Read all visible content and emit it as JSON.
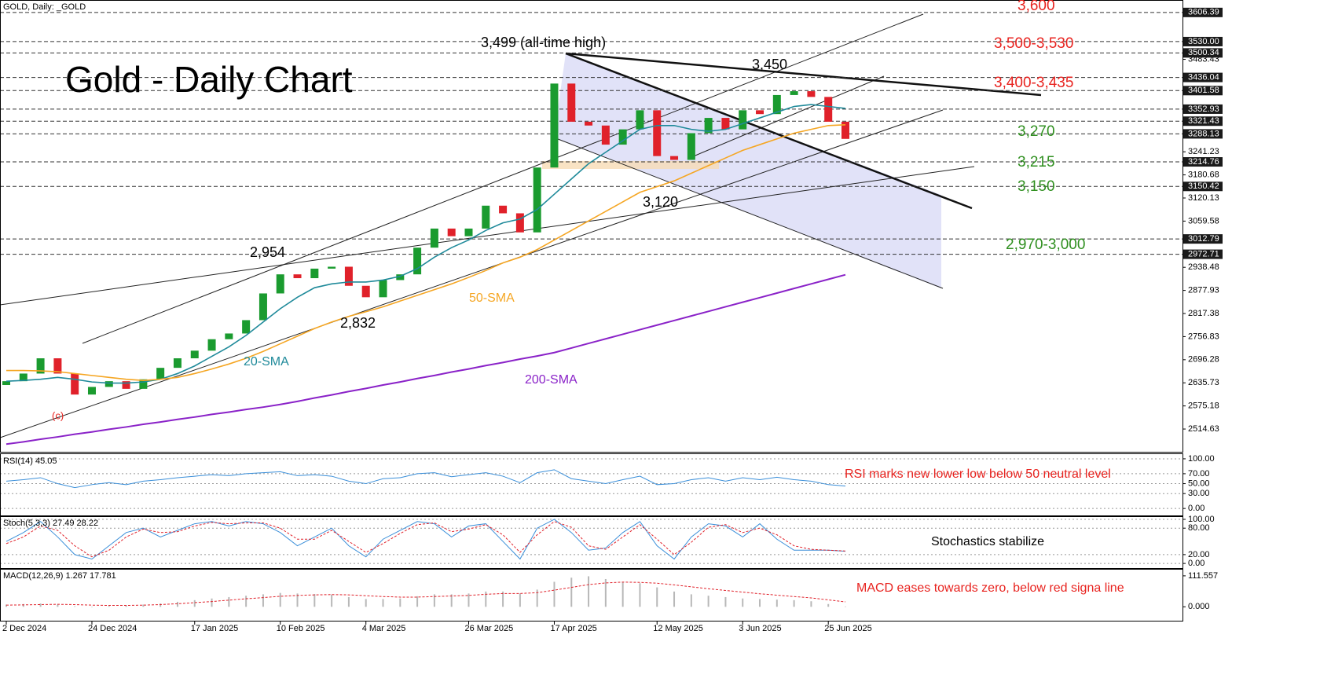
{
  "chart_data": [
    {
      "type": "candlestick",
      "title": "Gold - Daily Chart",
      "header": "GOLD, Daily: _GOLD",
      "categories": [
        "2 Dec 2024",
        null,
        null,
        null,
        null,
        "24 Dec 2024",
        null,
        null,
        null,
        null,
        null,
        "17 Jan 2025",
        null,
        null,
        null,
        null,
        "10 Feb 2025",
        null,
        null,
        null,
        null,
        "4 Mar 2025",
        null,
        null,
        null,
        null,
        null,
        "26 Mar 2025",
        null,
        null,
        null,
        null,
        "17 Apr 2025",
        null,
        null,
        null,
        null,
        null,
        "12 May 2025",
        null,
        null,
        null,
        null,
        "3 Jun 2025",
        null,
        null,
        null,
        null,
        "25 Jun 2025",
        null
      ],
      "open": [
        2630,
        2640,
        2660,
        2700,
        2660,
        2605,
        2625,
        2640,
        2620,
        2645,
        2675,
        2700,
        2720,
        2750,
        2765,
        2800,
        2870,
        2920,
        2910,
        2935,
        2940,
        2890,
        2860,
        2905,
        2920,
        2990,
        3040,
        3020,
        3040,
        3100,
        3080,
        3030,
        3200,
        3420,
        3320,
        3310,
        3260,
        3300,
        3350,
        3230,
        3220,
        3290,
        3330,
        3300,
        3350,
        3340,
        3390,
        3400,
        3385,
        3320
      ],
      "close": [
        2640,
        2660,
        2700,
        2660,
        2605,
        2625,
        2640,
        2620,
        2645,
        2675,
        2700,
        2720,
        2750,
        2765,
        2800,
        2870,
        2920,
        2910,
        2935,
        2940,
        2890,
        2860,
        2905,
        2920,
        2990,
        3040,
        3020,
        3040,
        3100,
        3080,
        3030,
        3200,
        3420,
        3320,
        3310,
        3260,
        3300,
        3350,
        3230,
        3220,
        3290,
        3330,
        3300,
        3350,
        3340,
        3390,
        3400,
        3385,
        3320,
        3275
      ],
      "up_color": "#1a9b2f",
      "down_color": "#e0212a",
      "series": [
        {
          "name": "20-SMA",
          "color": "#1f8a9a",
          "values": [
            2640,
            2642,
            2645,
            2650,
            2645,
            2638,
            2635,
            2635,
            2638,
            2645,
            2660,
            2680,
            2705,
            2730,
            2760,
            2795,
            2830,
            2860,
            2885,
            2895,
            2900,
            2900,
            2905,
            2915,
            2935,
            2965,
            2990,
            3010,
            3035,
            3055,
            3065,
            3090,
            3130,
            3170,
            3210,
            3240,
            3270,
            3300,
            3310,
            3310,
            3300,
            3295,
            3300,
            3315,
            3330,
            3345,
            3360,
            3365,
            3360,
            3355
          ]
        },
        {
          "name": "50-SMA",
          "color": "#f5a623",
          "values": [
            2668,
            2668,
            2667,
            2665,
            2660,
            2655,
            2650,
            2645,
            2642,
            2645,
            2650,
            2660,
            2672,
            2685,
            2700,
            2718,
            2738,
            2758,
            2778,
            2795,
            2810,
            2822,
            2835,
            2850,
            2865,
            2880,
            2895,
            2912,
            2930,
            2950,
            2965,
            2985,
            3010,
            3035,
            3060,
            3085,
            3110,
            3135,
            3150,
            3165,
            3185,
            3205,
            3225,
            3245,
            3260,
            3275,
            3290,
            3300,
            3310,
            3312
          ]
        },
        {
          "name": "200-SMA",
          "color": "#8a22c8",
          "values": [
            2475,
            2481,
            2488,
            2494,
            2501,
            2507,
            2514,
            2520,
            2527,
            2533,
            2540,
            2546,
            2553,
            2559,
            2566,
            2572,
            2579,
            2587,
            2596,
            2604,
            2613,
            2621,
            2630,
            2638,
            2647,
            2655,
            2664,
            2672,
            2681,
            2689,
            2698,
            2706,
            2715,
            2727,
            2739,
            2751,
            2763,
            2775,
            2787,
            2799,
            2811,
            2823,
            2835,
            2847,
            2859,
            2871,
            2883,
            2895,
            2907,
            2919
          ]
        }
      ],
      "ylim": [
        2455,
        3639
      ],
      "yticks": [
        3483.43,
        3241.23,
        3180.68,
        3120.13,
        3059.58,
        2938.48,
        2877.93,
        2817.38,
        2756.83,
        2696.28,
        2635.73,
        2575.18,
        2514.63
      ],
      "levels": [
        3606.39,
        {
          "value": 3530,
          "label": "3530.00"
        },
        3500.34,
        3436.04,
        3401.58,
        3352.93,
        3321.43,
        3288.13,
        3214.76,
        3150.42,
        3012.79,
        2972.71
      ],
      "annotations": [
        "3,499 (all-time high)",
        "3,450",
        "2,954",
        "2,832",
        "3,120",
        "(c)"
      ],
      "level_notes": [
        "3,600",
        "3,500-3,530",
        "3,400-3,435",
        "3,270",
        "3,215",
        "3,150",
        "2,970-3,000"
      ]
    },
    {
      "type": "line",
      "header": "RSI(14) 45.05",
      "note": "RSI marks new lower low below 50 neutral level",
      "series": [
        {
          "color": "#3b8fd9",
          "values": [
            55,
            58,
            62,
            50,
            42,
            48,
            52,
            48,
            55,
            58,
            62,
            65,
            68,
            66,
            70,
            72,
            74,
            66,
            68,
            65,
            55,
            50,
            60,
            62,
            70,
            72,
            64,
            68,
            72,
            65,
            52,
            72,
            78,
            60,
            55,
            50,
            58,
            65,
            48,
            50,
            58,
            62,
            55,
            62,
            58,
            63,
            58,
            55,
            48,
            45.05
          ]
        }
      ],
      "ylim": [
        -14,
        109.4
      ],
      "yticks": [
        {
          "value": 100,
          "label": "100.00"
        },
        {
          "value": 70,
          "label": "70.00"
        },
        {
          "value": 50,
          "label": "50.00"
        },
        {
          "value": 30,
          "label": "30.00"
        },
        {
          "value": 0,
          "label": "0.00"
        }
      ]
    },
    {
      "type": "line",
      "header": "Stoch(5,3,3) 27.49 28.22",
      "note": "Stochastics stabilize",
      "series": [
        {
          "color": "#3b8fd9",
          "values": [
            50,
            70,
            95,
            60,
            20,
            10,
            40,
            70,
            80,
            60,
            75,
            90,
            95,
            85,
            95,
            90,
            70,
            40,
            60,
            80,
            40,
            15,
            55,
            75,
            95,
            90,
            60,
            85,
            90,
            50,
            10,
            80,
            100,
            70,
            30,
            35,
            70,
            95,
            40,
            10,
            60,
            90,
            85,
            60,
            90,
            55,
            30,
            30,
            30,
            27.49
          ]
        },
        {
          "color": "#e0212a",
          "dashed": true,
          "values": [
            45,
            60,
            85,
            75,
            40,
            15,
            30,
            60,
            78,
            70,
            72,
            85,
            93,
            90,
            92,
            92,
            80,
            55,
            55,
            75,
            50,
            25,
            45,
            68,
            88,
            92,
            72,
            78,
            88,
            65,
            25,
            65,
            95,
            82,
            40,
            32,
            60,
            88,
            55,
            20,
            48,
            82,
            88,
            70,
            80,
            65,
            40,
            32,
            30,
            28.22
          ]
        }
      ],
      "ylim": [
        -10.5,
        105.3
      ],
      "yticks": [
        {
          "value": 100,
          "label": "100.00"
        },
        {
          "value": 80,
          "label": "80.00"
        },
        {
          "value": 20,
          "label": "20.00"
        },
        {
          "value": 0,
          "label": "0.00"
        }
      ]
    },
    {
      "type": "bar",
      "header": "MACD(12,26,9) 1.267 17.781",
      "note": "MACD eases towards zero, below red signa line",
      "series": [
        {
          "color": "#b8b8b8",
          "values": [
            8,
            10,
            12,
            8,
            2,
            0,
            3,
            5,
            8,
            12,
            18,
            24,
            30,
            35,
            40,
            45,
            50,
            48,
            46,
            44,
            35,
            28,
            28,
            30,
            38,
            45,
            45,
            48,
            55,
            55,
            48,
            62,
            90,
            105,
            110,
            100,
            90,
            85,
            70,
            55,
            45,
            40,
            35,
            30,
            28,
            26,
            24,
            20,
            10,
            1.267
          ]
        },
        {
          "color": "#e0212a",
          "dashed": true,
          "values": [
            6,
            7,
            8,
            9,
            8,
            6,
            5,
            5,
            6,
            8,
            11,
            15,
            19,
            24,
            29,
            33,
            38,
            41,
            43,
            44,
            43,
            40,
            37,
            35,
            35,
            37,
            39,
            41,
            45,
            48,
            48,
            51,
            60,
            70,
            80,
            86,
            89,
            88,
            85,
            79,
            72,
            65,
            59,
            53,
            47,
            42,
            37,
            32,
            25,
            17.781
          ]
        }
      ],
      "ylim": [
        -50.1,
        133.9
      ],
      "yticks": [
        {
          "value": 111.557,
          "label": "111.557"
        },
        {
          "value": 0,
          "label": "0.000"
        }
      ]
    }
  ]
}
